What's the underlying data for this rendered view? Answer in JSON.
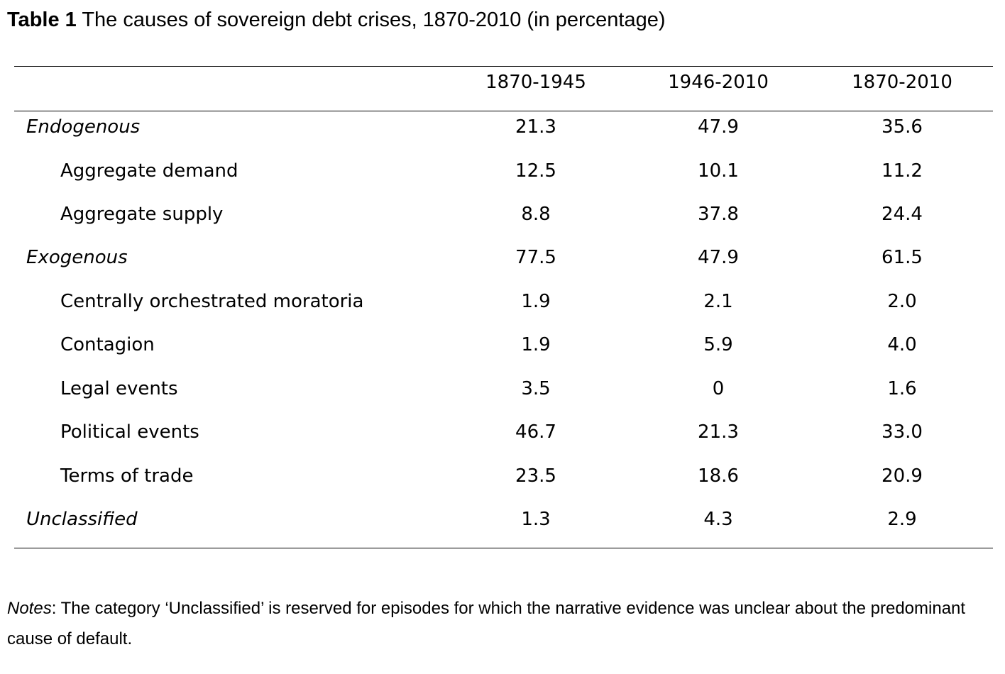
{
  "caption": {
    "label": "Table 1",
    "title": "The causes of sovereign debt crises, 1870-2010 (in percentage)"
  },
  "table": {
    "columns": [
      "1870-1945",
      "1946-2010",
      "1870-2010"
    ],
    "rows": [
      {
        "name": "Endogenous",
        "kind": "group",
        "values": [
          "21.3",
          "47.9",
          "35.6"
        ]
      },
      {
        "name": "Aggregate demand",
        "kind": "sub",
        "values": [
          "12.5",
          "10.1",
          "11.2"
        ]
      },
      {
        "name": "Aggregate supply",
        "kind": "sub",
        "values": [
          "8.8",
          "37.8",
          "24.4"
        ]
      },
      {
        "name": "Exogenous",
        "kind": "group",
        "values": [
          "77.5",
          "47.9",
          "61.5"
        ]
      },
      {
        "name": "Centrally orchestrated moratoria",
        "kind": "sub",
        "values": [
          "1.9",
          "2.1",
          "2.0"
        ]
      },
      {
        "name": "Contagion",
        "kind": "sub",
        "values": [
          "1.9",
          "5.9",
          "4.0"
        ]
      },
      {
        "name": "Legal events",
        "kind": "sub",
        "values": [
          "3.5",
          "0",
          "1.6"
        ]
      },
      {
        "name": "Political events",
        "kind": "sub",
        "values": [
          "46.7",
          "21.3",
          "33.0"
        ]
      },
      {
        "name": "Terms of trade",
        "kind": "sub",
        "values": [
          "23.5",
          "18.6",
          "20.9"
        ]
      },
      {
        "name": "Unclassified",
        "kind": "group",
        "values": [
          "1.3",
          "4.3",
          "2.9"
        ]
      }
    ]
  },
  "notes": {
    "lead": "Notes",
    "text": ": The category ‘Unclassified’ is reserved for episodes for which the narrative evidence was unclear about the predominant cause of default."
  }
}
